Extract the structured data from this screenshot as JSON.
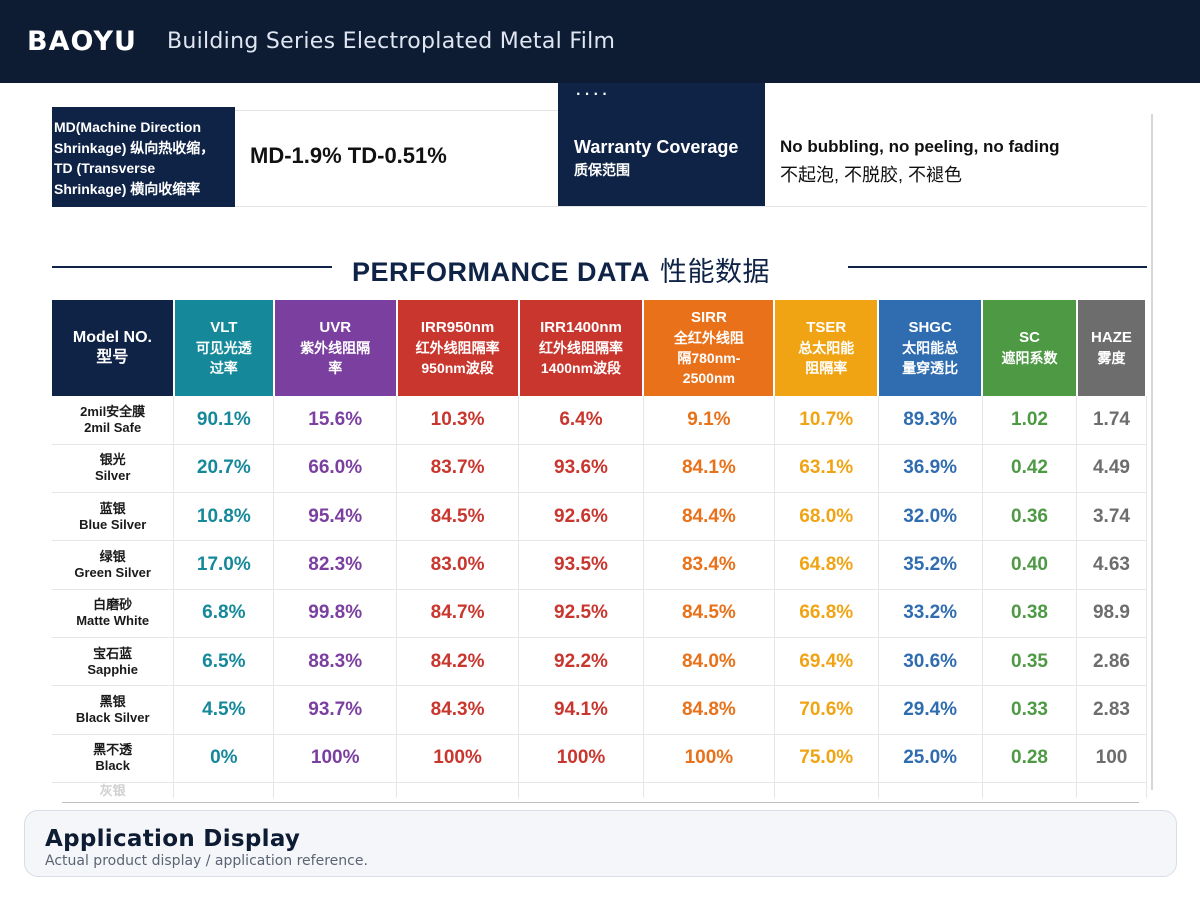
{
  "header": {
    "brand": "BAOYU",
    "subtitle": "Building Series Electroplated Metal Film"
  },
  "spec": {
    "shrink_label_lines": [
      "MD(Machine Direction",
      "Shrinkage) 纵向热收缩，",
      "TD  (Transverse",
      "Shrinkage) 横向收缩率"
    ],
    "shrink_value": "MD-1.9%   TD-0.51%",
    "warranty_label_en": "Warranty Coverage",
    "warranty_label_zh": "质保范围",
    "warranty_value_en": "No bubbling, no peeling, no fading",
    "warranty_value_zh": "不起泡, 不脱胶, 不褪色"
  },
  "performance": {
    "title_en": "PERFORMANCE DATA",
    "title_zh": "性能数据",
    "columns": [
      {
        "lines": [
          "Model NO.",
          "型号"
        ],
        "color": "#0f2347"
      },
      {
        "lines": [
          "VLT",
          "可见光透",
          "过率"
        ],
        "color": "#15899a"
      },
      {
        "lines": [
          "UVR",
          "紫外线阻隔",
          "率"
        ],
        "color": "#7b3fa0"
      },
      {
        "lines": [
          "IRR950nm",
          "红外线阻隔率",
          "950nm波段"
        ],
        "color": "#c9362e"
      },
      {
        "lines": [
          "IRR1400nm",
          "红外线阻隔率",
          "1400nm波段"
        ],
        "color": "#c9362e"
      },
      {
        "lines": [
          "SIRR",
          "全红外线阻",
          "隔780nm-",
          "2500nm"
        ],
        "color": "#e8711a"
      },
      {
        "lines": [
          "TSER",
          "总太阳能",
          "阻隔率"
        ],
        "color": "#f0a414"
      },
      {
        "lines": [
          "SHGC",
          "太阳能总",
          "量穿透比"
        ],
        "color": "#2f6db0"
      },
      {
        "lines": [
          "SC",
          "遮阳系数"
        ],
        "color": "#4e9a44"
      },
      {
        "lines": [
          "HAZE",
          "雾度"
        ],
        "color": "#6d6d6d"
      }
    ],
    "value_colors": [
      "#15899a",
      "#7b3fa0",
      "#c9362e",
      "#c9362e",
      "#e8711a",
      "#f0a414",
      "#2f6db0",
      "#4e9a44",
      "#6d6d6d"
    ],
    "rows": [
      {
        "model_zh": "2mil安全膜",
        "model_en": "2mil Safe",
        "values": [
          "90.1%",
          "15.6%",
          "10.3%",
          "6.4%",
          "9.1%",
          "10.7%",
          "89.3%",
          "1.02",
          "1.74"
        ]
      },
      {
        "model_zh": "银光",
        "model_en": "Silver",
        "values": [
          "20.7%",
          "66.0%",
          "83.7%",
          "93.6%",
          "84.1%",
          "63.1%",
          "36.9%",
          "0.42",
          "4.49"
        ]
      },
      {
        "model_zh": "蓝银",
        "model_en": "Blue Silver",
        "values": [
          "10.8%",
          "95.4%",
          "84.5%",
          "92.6%",
          "84.4%",
          "68.0%",
          "32.0%",
          "0.36",
          "3.74"
        ]
      },
      {
        "model_zh": "绿银",
        "model_en": "Green Silver",
        "values": [
          "17.0%",
          "82.3%",
          "83.0%",
          "93.5%",
          "83.4%",
          "64.8%",
          "35.2%",
          "0.40",
          "4.63"
        ]
      },
      {
        "model_zh": "白磨砂",
        "model_en": "Matte White",
        "values": [
          "6.8%",
          "99.8%",
          "84.7%",
          "92.5%",
          "84.5%",
          "66.8%",
          "33.2%",
          "0.38",
          "98.9"
        ]
      },
      {
        "model_zh": "宝石蓝",
        "model_en": "Sapphie",
        "values": [
          "6.5%",
          "88.3%",
          "84.2%",
          "92.2%",
          "84.0%",
          "69.4%",
          "30.6%",
          "0.35",
          "2.86"
        ]
      },
      {
        "model_zh": "黑银",
        "model_en": "Black Silver",
        "values": [
          "4.5%",
          "93.7%",
          "84.3%",
          "94.1%",
          "84.8%",
          "70.6%",
          "29.4%",
          "0.33",
          "2.83"
        ]
      },
      {
        "model_zh": "黑不透",
        "model_en": "Black",
        "values": [
          "0%",
          "100%",
          "100%",
          "100%",
          "100%",
          "75.0%",
          "25.0%",
          "0.28",
          "100"
        ]
      }
    ],
    "cut_row_model": "灰银"
  },
  "app_display": {
    "title": "Application Display",
    "subtitle": "Actual product display / application reference."
  }
}
